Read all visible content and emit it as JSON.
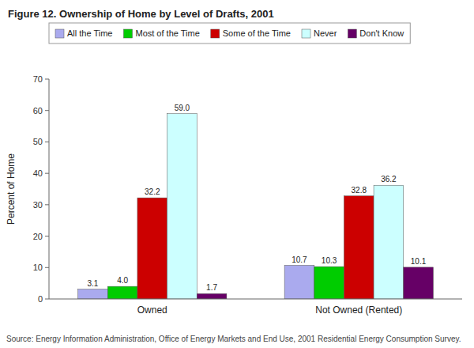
{
  "chart_data": {
    "type": "bar",
    "title": "Figure 12.   Ownership of Home by Level of Drafts, 2001",
    "ylabel": "Percent of Home",
    "annotations": [
      "Source:   Energy Information Administration, Office of Energy Markets and End Use, 2001 Residential Energy Consumption Survey."
    ],
    "categories": [
      "Owned",
      "Not Owned (Rented)"
    ],
    "series": [
      {
        "name": "All the Time",
        "color": "#aaaaee",
        "values": [
          3.1,
          10.7
        ],
        "value_labels": [
          "3.1",
          "10.7"
        ]
      },
      {
        "name": "Most of the Time",
        "color": "#00cc00",
        "values": [
          4.0,
          10.3
        ],
        "value_labels": [
          "4.0",
          "10.3"
        ]
      },
      {
        "name": "Some of the Time",
        "color": "#cc0000",
        "values": [
          32.2,
          32.8
        ],
        "value_labels": [
          "32.2",
          "32.8"
        ]
      },
      {
        "name": "Never",
        "color": "#ccffff",
        "values": [
          59.0,
          36.2
        ],
        "value_labels": [
          "59.0",
          "36.2"
        ]
      },
      {
        "name": "Don't Know",
        "color": "#660066",
        "values": [
          1.7,
          10.1
        ],
        "value_labels": [
          "1.7",
          "10.1"
        ]
      }
    ],
    "ylim": [
      0,
      70
    ],
    "yticks": [
      0,
      10,
      20,
      30,
      40,
      50,
      60,
      70
    ],
    "data_labels": true,
    "legend": "top",
    "grid": false
  }
}
